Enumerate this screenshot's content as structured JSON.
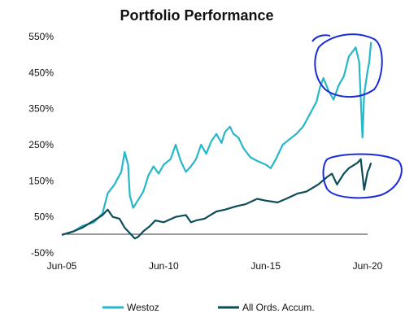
{
  "chart_data": {
    "type": "line",
    "title": "Portfolio Performance",
    "xlabel": "",
    "ylabel": "",
    "x_ticks": [
      "Jun-05",
      "Jun-10",
      "Jun-15",
      "Jun-20"
    ],
    "y_ticks": [
      "-50%",
      "50%",
      "150%",
      "250%",
      "350%",
      "450%",
      "550%"
    ],
    "xlim": [
      "Jun-05",
      "Jun-20"
    ],
    "ylim": [
      -50,
      550
    ],
    "grid": false,
    "legend_position": "bottom",
    "series": [
      {
        "name": "Westoz",
        "color": "#26b7c8",
        "points": [
          [
            "Jun-05",
            0
          ],
          [
            "Jan-06",
            10
          ],
          [
            "Jun-06",
            25
          ],
          [
            "Jan-07",
            35
          ],
          [
            "Jun-07",
            60
          ],
          [
            "Sep-07",
            115
          ],
          [
            "Jan-08",
            140
          ],
          [
            "May-08",
            175
          ],
          [
            "Jul-08",
            230
          ],
          [
            "Sep-08",
            195
          ],
          [
            "Oct-08",
            110
          ],
          [
            "Dec-08",
            75
          ],
          [
            "Feb-09",
            90
          ],
          [
            "Jun-09",
            120
          ],
          [
            "Sep-09",
            165
          ],
          [
            "Dec-09",
            190
          ],
          [
            "Mar-10",
            170
          ],
          [
            "Jun-10",
            195
          ],
          [
            "Oct-10",
            210
          ],
          [
            "Jan-11",
            250
          ],
          [
            "Apr-11",
            205
          ],
          [
            "Jul-11",
            175
          ],
          [
            "Oct-11",
            190
          ],
          [
            "Jan-12",
            210
          ],
          [
            "Apr-12",
            250
          ],
          [
            "Jul-12",
            225
          ],
          [
            "Oct-12",
            260
          ],
          [
            "Jan-13",
            280
          ],
          [
            "Apr-13",
            255
          ],
          [
            "Jun-13",
            285
          ],
          [
            "Sep-13",
            300
          ],
          [
            "Nov-13",
            280
          ],
          [
            "Feb-14",
            270
          ],
          [
            "May-14",
            240
          ],
          [
            "Sep-14",
            215
          ],
          [
            "Jan-15",
            205
          ],
          [
            "Jun-15",
            195
          ],
          [
            "Sep-15",
            185
          ],
          [
            "Dec-15",
            210
          ],
          [
            "Apr-16",
            250
          ],
          [
            "Aug-16",
            265
          ],
          [
            "Dec-16",
            280
          ],
          [
            "Apr-17",
            300
          ],
          [
            "Aug-17",
            335
          ],
          [
            "Dec-17",
            370
          ],
          [
            "Feb-18",
            410
          ],
          [
            "Apr-18",
            435
          ],
          [
            "Jul-18",
            400
          ],
          [
            "Oct-18",
            375
          ],
          [
            "Jan-19",
            415
          ],
          [
            "Apr-19",
            440
          ],
          [
            "Jul-19",
            495
          ],
          [
            "Nov-19",
            520
          ],
          [
            "Jan-20",
            480
          ],
          [
            "Mar-20",
            270
          ],
          [
            "Apr-20",
            390
          ],
          [
            "Jun-20",
            455
          ],
          [
            "Jul-20",
            480
          ],
          [
            "Aug-20",
            535
          ]
        ]
      },
      {
        "name": "All Ords. Accum.",
        "color": "#0e4d58",
        "points": [
          [
            "Jun-05",
            0
          ],
          [
            "Jan-06",
            10
          ],
          [
            "Jun-06",
            20
          ],
          [
            "Jan-07",
            40
          ],
          [
            "Jun-07",
            55
          ],
          [
            "Sep-07",
            70
          ],
          [
            "Dec-07",
            50
          ],
          [
            "Apr-08",
            45
          ],
          [
            "Jul-08",
            20
          ],
          [
            "Oct-08",
            5
          ],
          [
            "Jan-09",
            -10
          ],
          [
            "Mar-09",
            -5
          ],
          [
            "Jun-09",
            10
          ],
          [
            "Oct-09",
            25
          ],
          [
            "Jan-10",
            40
          ],
          [
            "Jun-10",
            35
          ],
          [
            "Jan-11",
            50
          ],
          [
            "Jul-11",
            55
          ],
          [
            "Oct-11",
            35
          ],
          [
            "Jan-12",
            40
          ],
          [
            "Jun-12",
            45
          ],
          [
            "Jan-13",
            65
          ],
          [
            "Jun-13",
            70
          ],
          [
            "Jan-14",
            80
          ],
          [
            "Jun-14",
            85
          ],
          [
            "Jan-15",
            100
          ],
          [
            "Jun-15",
            95
          ],
          [
            "Jan-16",
            90
          ],
          [
            "Jun-16",
            100
          ],
          [
            "Jan-17",
            115
          ],
          [
            "Jun-17",
            120
          ],
          [
            "Jan-18",
            140
          ],
          [
            "Jun-18",
            160
          ],
          [
            "Sep-18",
            170
          ],
          [
            "Dec-18",
            140
          ],
          [
            "Apr-19",
            170
          ],
          [
            "Jul-19",
            185
          ],
          [
            "Dec-19",
            200
          ],
          [
            "Feb-20",
            210
          ],
          [
            "Apr-20",
            125
          ],
          [
            "Jun-20",
            175
          ],
          [
            "Jul-20",
            185
          ],
          [
            "Aug-20",
            200
          ]
        ]
      }
    ]
  }
}
